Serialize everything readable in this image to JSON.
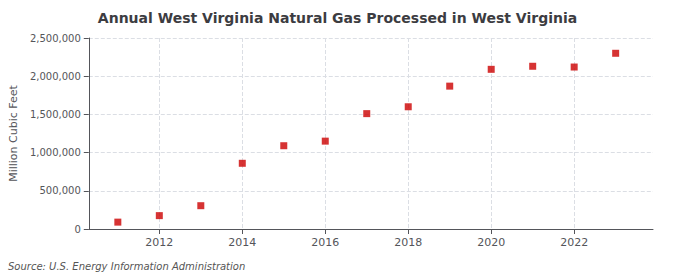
{
  "chart_data": {
    "type": "scatter",
    "title": "Annual West Virginia Natural Gas Processed in West Virginia",
    "ylabel": "Million Cubic Feet",
    "annotation": "Source: U.S. Energy Information Administration",
    "x": [
      2011,
      2012,
      2013,
      2014,
      2015,
      2016,
      2017,
      2018,
      2019,
      2020,
      2021,
      2022,
      2023
    ],
    "values": [
      90000,
      175000,
      305000,
      860000,
      1090000,
      1150000,
      1510000,
      1600000,
      1870000,
      2090000,
      2130000,
      2120000,
      2300000
    ],
    "color": "#cc0000",
    "marker": "square",
    "xlim": [
      2010.3,
      2023.9
    ],
    "xticks": [
      2012,
      2014,
      2016,
      2018,
      2020,
      2022
    ],
    "ylim": [
      0,
      2500000
    ],
    "yticks": [
      0,
      {
        "value": 500000,
        "label": "500,000"
      },
      {
        "value": 1000000,
        "label": "1,000,000"
      },
      {
        "value": 1500000,
        "label": "1,500,000"
      },
      {
        "value": 2000000,
        "label": "2,000,000"
      },
      {
        "value": 2500000,
        "label": "2,500,000"
      }
    ],
    "grid": true
  }
}
